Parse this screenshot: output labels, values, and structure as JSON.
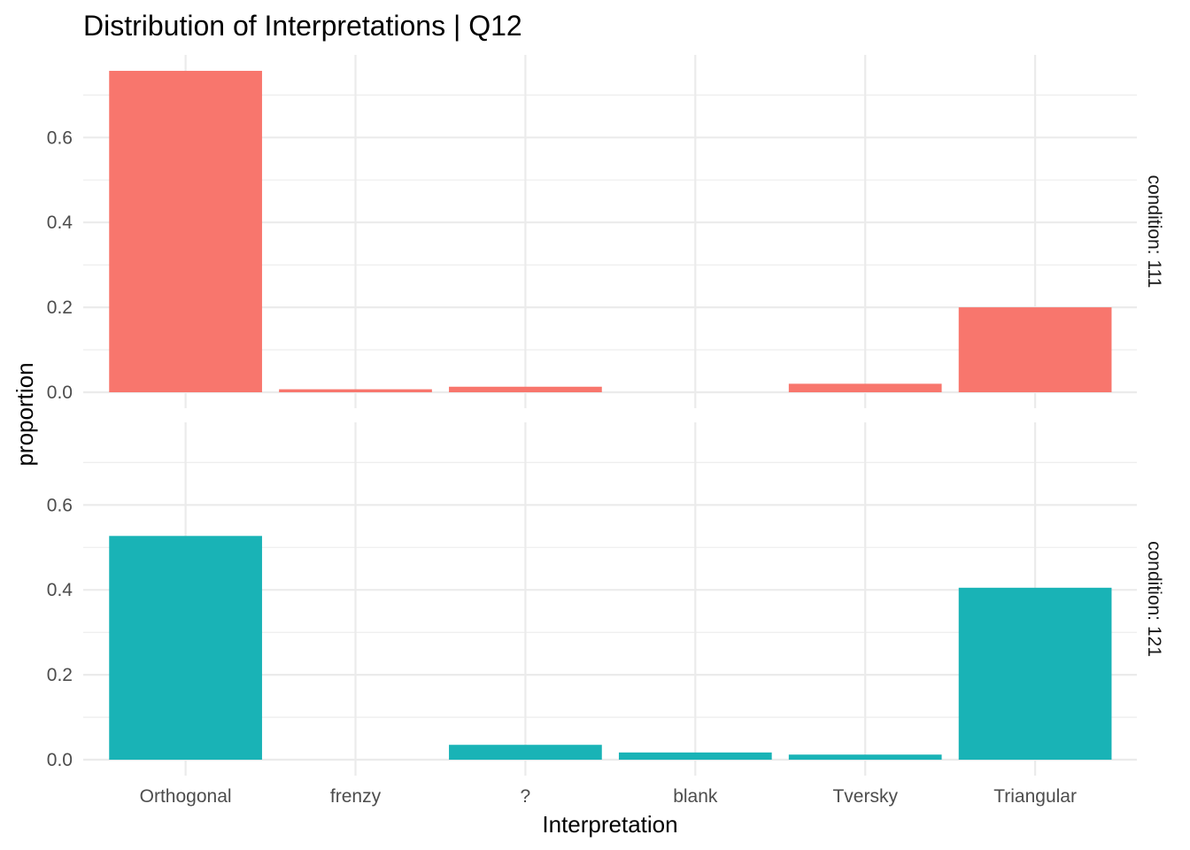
{
  "chart_data": {
    "type": "bar",
    "title": "Distribution of Interpretations | Q12",
    "xlabel": "Interpretation",
    "ylabel": "proportion",
    "categories": [
      "Orthogonal",
      "frenzy",
      "?",
      "blank",
      "Tversky",
      "Triangular"
    ],
    "ylim": [
      0,
      0.76
    ],
    "yticks": [
      0.0,
      0.2,
      0.4,
      0.6
    ],
    "ytick_labels": [
      "0.0",
      "0.2",
      "0.4",
      "0.6"
    ],
    "grid": true,
    "facets": [
      {
        "label": "condition: 111",
        "color": "#F8766D",
        "values": [
          0.757,
          0.007,
          0.013,
          0.0,
          0.02,
          0.2
        ]
      },
      {
        "label": "condition: 121",
        "color": "#19B3B6",
        "values": [
          0.527,
          0.0,
          0.035,
          0.017,
          0.012,
          0.405
        ]
      }
    ]
  }
}
